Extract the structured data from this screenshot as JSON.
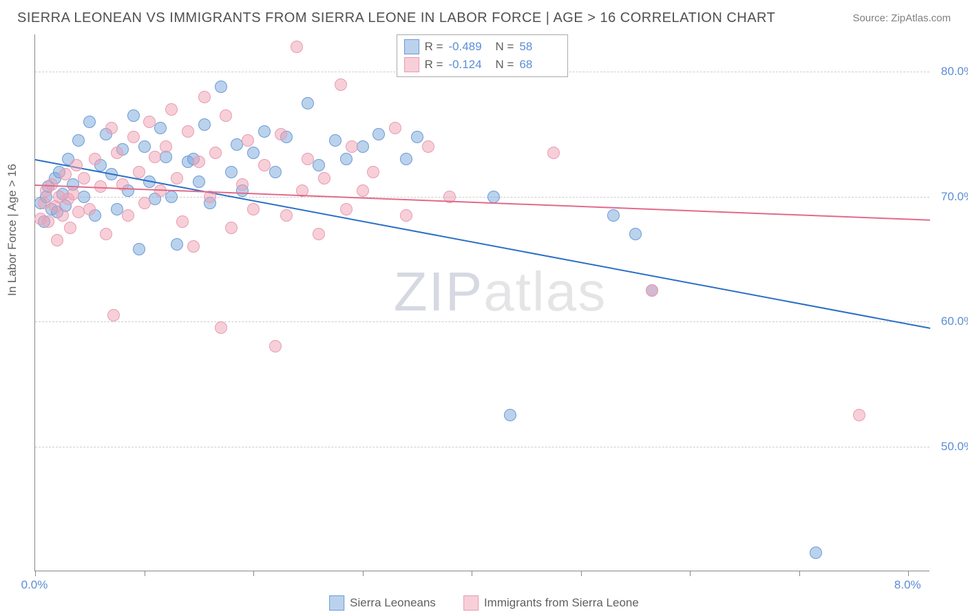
{
  "header": {
    "title": "SIERRA LEONEAN VS IMMIGRANTS FROM SIERRA LEONE IN LABOR FORCE | AGE > 16 CORRELATION CHART",
    "source": "Source: ZipAtlas.com"
  },
  "watermark": {
    "zip": "ZIP",
    "atlas": "atlas"
  },
  "chart": {
    "type": "scatter",
    "background_color": "#ffffff",
    "grid_color": "#cccccc",
    "axis_color": "#888888",
    "y_axis_label": "In Labor Force | Age > 16",
    "ylim": [
      40,
      83
    ],
    "y_ticks": [
      50,
      60,
      70,
      80
    ],
    "y_tick_labels": [
      "50.0%",
      "60.0%",
      "70.0%",
      "80.0%"
    ],
    "xlim": [
      0,
      8.2
    ],
    "x_ticks": [
      0,
      1,
      2,
      3,
      4,
      5,
      6,
      7,
      8
    ],
    "x_tick_labels_shown": {
      "0": "0.0%",
      "8": "8.0%"
    },
    "label_fontsize": 17,
    "tick_color": "#5b8dd6",
    "series": [
      {
        "name": "Sierra Leoneans",
        "color_fill": "rgba(120,165,220,0.5)",
        "color_stroke": "#6a9bd4",
        "trend_color": "#2b6fc4",
        "R": "-0.489",
        "N": "58",
        "trend_start": {
          "x": 0.0,
          "y": 73.0
        },
        "trend_end": {
          "x": 8.2,
          "y": 59.5
        },
        "points": [
          {
            "x": 0.05,
            "y": 69.5
          },
          {
            "x": 0.08,
            "y": 68.0
          },
          {
            "x": 0.1,
            "y": 70.0
          },
          {
            "x": 0.12,
            "y": 70.8
          },
          {
            "x": 0.15,
            "y": 69.0
          },
          {
            "x": 0.18,
            "y": 71.5
          },
          {
            "x": 0.2,
            "y": 68.8
          },
          {
            "x": 0.22,
            "y": 72.0
          },
          {
            "x": 0.25,
            "y": 70.2
          },
          {
            "x": 0.28,
            "y": 69.3
          },
          {
            "x": 0.3,
            "y": 73.0
          },
          {
            "x": 0.35,
            "y": 71.0
          },
          {
            "x": 0.4,
            "y": 74.5
          },
          {
            "x": 0.45,
            "y": 70.0
          },
          {
            "x": 0.5,
            "y": 76.0
          },
          {
            "x": 0.55,
            "y": 68.5
          },
          {
            "x": 0.6,
            "y": 72.5
          },
          {
            "x": 0.65,
            "y": 75.0
          },
          {
            "x": 0.7,
            "y": 71.8
          },
          {
            "x": 0.75,
            "y": 69.0
          },
          {
            "x": 0.8,
            "y": 73.8
          },
          {
            "x": 0.85,
            "y": 70.5
          },
          {
            "x": 0.9,
            "y": 76.5
          },
          {
            "x": 0.95,
            "y": 65.8
          },
          {
            "x": 1.0,
            "y": 74.0
          },
          {
            "x": 1.05,
            "y": 71.2
          },
          {
            "x": 1.1,
            "y": 69.8
          },
          {
            "x": 1.15,
            "y": 75.5
          },
          {
            "x": 1.2,
            "y": 73.2
          },
          {
            "x": 1.25,
            "y": 70.0
          },
          {
            "x": 1.3,
            "y": 66.2
          },
          {
            "x": 1.4,
            "y": 72.8
          },
          {
            "x": 1.45,
            "y": 73.0
          },
          {
            "x": 1.5,
            "y": 71.2
          },
          {
            "x": 1.55,
            "y": 75.8
          },
          {
            "x": 1.6,
            "y": 69.5
          },
          {
            "x": 1.7,
            "y": 78.8
          },
          {
            "x": 1.8,
            "y": 72.0
          },
          {
            "x": 1.85,
            "y": 74.2
          },
          {
            "x": 1.9,
            "y": 70.5
          },
          {
            "x": 2.0,
            "y": 73.5
          },
          {
            "x": 2.1,
            "y": 75.2
          },
          {
            "x": 2.2,
            "y": 72.0
          },
          {
            "x": 2.3,
            "y": 74.8
          },
          {
            "x": 2.5,
            "y": 77.5
          },
          {
            "x": 2.6,
            "y": 72.5
          },
          {
            "x": 2.75,
            "y": 74.5
          },
          {
            "x": 2.85,
            "y": 73.0
          },
          {
            "x": 3.0,
            "y": 74.0
          },
          {
            "x": 3.15,
            "y": 75.0
          },
          {
            "x": 3.4,
            "y": 73.0
          },
          {
            "x": 3.5,
            "y": 74.8
          },
          {
            "x": 4.2,
            "y": 70.0
          },
          {
            "x": 4.35,
            "y": 52.5
          },
          {
            "x": 5.3,
            "y": 68.5
          },
          {
            "x": 5.5,
            "y": 67.0
          },
          {
            "x": 5.65,
            "y": 62.5
          },
          {
            "x": 7.15,
            "y": 41.5
          }
        ]
      },
      {
        "name": "Immigrants from Sierra Leone",
        "color_fill": "rgba(240,160,180,0.5)",
        "color_stroke": "#e89bb0",
        "trend_color": "#e26a8a",
        "R": "-0.124",
        "N": "68",
        "trend_start": {
          "x": 0.0,
          "y": 71.0
        },
        "trend_end": {
          "x": 8.2,
          "y": 68.2
        },
        "points": [
          {
            "x": 0.05,
            "y": 68.2
          },
          {
            "x": 0.08,
            "y": 69.5
          },
          {
            "x": 0.1,
            "y": 70.5
          },
          {
            "x": 0.12,
            "y": 68.0
          },
          {
            "x": 0.15,
            "y": 71.0
          },
          {
            "x": 0.18,
            "y": 69.2
          },
          {
            "x": 0.2,
            "y": 66.5
          },
          {
            "x": 0.22,
            "y": 70.0
          },
          {
            "x": 0.25,
            "y": 68.5
          },
          {
            "x": 0.28,
            "y": 71.8
          },
          {
            "x": 0.3,
            "y": 69.8
          },
          {
            "x": 0.32,
            "y": 67.5
          },
          {
            "x": 0.35,
            "y": 70.2
          },
          {
            "x": 0.38,
            "y": 72.5
          },
          {
            "x": 0.4,
            "y": 68.8
          },
          {
            "x": 0.45,
            "y": 71.5
          },
          {
            "x": 0.5,
            "y": 69.0
          },
          {
            "x": 0.55,
            "y": 73.0
          },
          {
            "x": 0.6,
            "y": 70.8
          },
          {
            "x": 0.65,
            "y": 67.0
          },
          {
            "x": 0.7,
            "y": 75.5
          },
          {
            "x": 0.72,
            "y": 60.5
          },
          {
            "x": 0.75,
            "y": 73.5
          },
          {
            "x": 0.8,
            "y": 71.0
          },
          {
            "x": 0.85,
            "y": 68.5
          },
          {
            "x": 0.9,
            "y": 74.8
          },
          {
            "x": 0.95,
            "y": 72.0
          },
          {
            "x": 1.0,
            "y": 69.5
          },
          {
            "x": 1.05,
            "y": 76.0
          },
          {
            "x": 1.1,
            "y": 73.2
          },
          {
            "x": 1.15,
            "y": 70.5
          },
          {
            "x": 1.2,
            "y": 74.0
          },
          {
            "x": 1.25,
            "y": 77.0
          },
          {
            "x": 1.3,
            "y": 71.5
          },
          {
            "x": 1.35,
            "y": 68.0
          },
          {
            "x": 1.4,
            "y": 75.2
          },
          {
            "x": 1.45,
            "y": 66.0
          },
          {
            "x": 1.5,
            "y": 72.8
          },
          {
            "x": 1.55,
            "y": 78.0
          },
          {
            "x": 1.6,
            "y": 70.0
          },
          {
            "x": 1.65,
            "y": 73.5
          },
          {
            "x": 1.7,
            "y": 59.5
          },
          {
            "x": 1.75,
            "y": 76.5
          },
          {
            "x": 1.8,
            "y": 67.5
          },
          {
            "x": 1.9,
            "y": 71.0
          },
          {
            "x": 1.95,
            "y": 74.5
          },
          {
            "x": 2.0,
            "y": 69.0
          },
          {
            "x": 2.1,
            "y": 72.5
          },
          {
            "x": 2.2,
            "y": 58.0
          },
          {
            "x": 2.25,
            "y": 75.0
          },
          {
            "x": 2.3,
            "y": 68.5
          },
          {
            "x": 2.4,
            "y": 82.0
          },
          {
            "x": 2.45,
            "y": 70.5
          },
          {
            "x": 2.5,
            "y": 73.0
          },
          {
            "x": 2.6,
            "y": 67.0
          },
          {
            "x": 2.65,
            "y": 71.5
          },
          {
            "x": 2.8,
            "y": 79.0
          },
          {
            "x": 2.85,
            "y": 69.0
          },
          {
            "x": 2.9,
            "y": 74.0
          },
          {
            "x": 3.0,
            "y": 70.5
          },
          {
            "x": 3.1,
            "y": 72.0
          },
          {
            "x": 3.3,
            "y": 75.5
          },
          {
            "x": 3.4,
            "y": 68.5
          },
          {
            "x": 3.6,
            "y": 74.0
          },
          {
            "x": 3.8,
            "y": 70.0
          },
          {
            "x": 4.75,
            "y": 73.5
          },
          {
            "x": 5.65,
            "y": 62.5
          },
          {
            "x": 7.55,
            "y": 52.5
          }
        ]
      }
    ]
  },
  "legend_top": {
    "r_label": "R =",
    "n_label": "N ="
  },
  "legend_bottom": {
    "items": [
      "Sierra Leoneans",
      "Immigrants from Sierra Leone"
    ]
  }
}
